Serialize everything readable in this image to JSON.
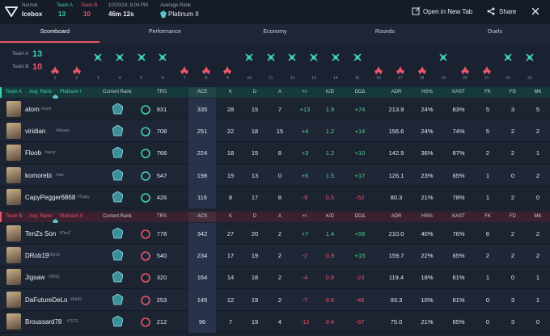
{
  "header": {
    "mode": "Normal",
    "map": "Icebox",
    "team_a_label": "Team A",
    "team_a_score": "13",
    "team_b_label": "Team B",
    "team_b_score": "10",
    "date": "10/20/24, 8:04 PM",
    "duration": "46m 12s",
    "avg_rank_label": "Average Rank",
    "avg_rank": "Platinum II",
    "open_new_tab": "Open in New Tab",
    "share": "Share"
  },
  "tabs": [
    "Scoreboard",
    "Performance",
    "Economy",
    "Rounds",
    "Duels"
  ],
  "active_tab": 0,
  "timeline": {
    "team_a_label": "Team A",
    "team_a_score": "13",
    "team_b_label": "Team B",
    "team_b_score": "10",
    "rounds": [
      {
        "label": "1",
        "winner": "team_b"
      },
      {
        "label": "2",
        "winner": "team_b"
      },
      {
        "label": "3",
        "winner": "team_a"
      },
      {
        "label": "4",
        "winner": "team_a"
      },
      {
        "label": "5",
        "winner": "team_a"
      },
      {
        "label": "6",
        "winner": "team_a"
      },
      {
        "label": "7",
        "winner": "team_b"
      },
      {
        "label": "8",
        "winner": "team_b"
      },
      {
        "label": "9",
        "winner": "team_b"
      },
      {
        "label": "10",
        "winner": "team_a"
      },
      {
        "label": "11",
        "winner": "team_a"
      },
      {
        "label": "12",
        "winner": "team_a"
      },
      {
        "label": "13",
        "winner": "team_a"
      },
      {
        "label": "14",
        "winner": "team_a"
      },
      {
        "label": "15",
        "winner": "team_a"
      },
      {
        "label": "16",
        "winner": "team_b"
      },
      {
        "label": "17",
        "winner": "team_b"
      },
      {
        "label": "18",
        "winner": "team_b"
      },
      {
        "label": "19",
        "winner": "team_a"
      },
      {
        "label": "20",
        "winner": "team_b"
      },
      {
        "label": "21",
        "winner": "team_b"
      },
      {
        "label": "22",
        "winner": "team_a"
      },
      {
        "label": "23",
        "winner": "team_a"
      }
    ]
  },
  "columns": [
    "Current Rank",
    "TRS",
    "ACS",
    "K",
    "D",
    "A",
    "+/-",
    "K/D",
    "DDΔ",
    "ADR",
    "HS%",
    "KAST",
    "FK",
    "FD",
    "MK"
  ],
  "teams": [
    {
      "label": "Team A",
      "avg_rank_label": "Avg. Rank:",
      "avg_rank": "Platinum I",
      "color": "#3fd0b4",
      "band": "#163a3a",
      "players": [
        {
          "name": "atom",
          "tag": "#care",
          "stats": [
            "931",
            "335",
            "28",
            "15",
            "7",
            "+13",
            "1.9",
            "+74",
            "213.9",
            "24%",
            "83%",
            "5",
            "3",
            "5"
          ]
        },
        {
          "name": "viridian",
          "tag": "#dream",
          "stats": [
            "708",
            "251",
            "22",
            "18",
            "15",
            "+4",
            "1.2",
            "+14",
            "156.6",
            "24%",
            "74%",
            "5",
            "2",
            "2"
          ]
        },
        {
          "name": "Floob",
          "tag": "#sexy",
          "stats": [
            "766",
            "224",
            "18",
            "15",
            "8",
            "+3",
            "1.2",
            "+10",
            "142.9",
            "36%",
            "87%",
            "2",
            "2",
            "1"
          ]
        },
        {
          "name": "komorebi",
          "tag": "#npr",
          "stats": [
            "547",
            "198",
            "19",
            "13",
            "0",
            "+6",
            "1.5",
            "+17",
            "126.1",
            "23%",
            "65%",
            "1",
            "0",
            "2"
          ]
        },
        {
          "name": "CapyPegger6868",
          "tag": "#Capy",
          "stats": [
            "426",
            "116",
            "8",
            "17",
            "8",
            "-9",
            "0.5",
            "-52",
            "80.3",
            "21%",
            "78%",
            "1",
            "2",
            "0"
          ]
        }
      ]
    },
    {
      "label": "Team B",
      "avg_rank_label": "Avg. Rank:",
      "avg_rank": "Platinum II",
      "color": "#e8566a",
      "band": "#3b2030",
      "players": [
        {
          "name": "TenZs Son",
          "tag": "#TenZ",
          "stats": [
            "778",
            "342",
            "27",
            "20",
            "2",
            "+7",
            "1.4",
            "+58",
            "210.0",
            "40%",
            "76%",
            "6",
            "2",
            "2"
          ]
        },
        {
          "name": "DRob19",
          "tag": "#2019",
          "stats": [
            "540",
            "234",
            "17",
            "19",
            "2",
            "-2",
            "0.9",
            "+15",
            "159.7",
            "22%",
            "65%",
            "2",
            "2",
            "2"
          ]
        },
        {
          "name": "Jigsaw",
          "tag": "#9051",
          "stats": [
            "320",
            "164",
            "14",
            "18",
            "2",
            "-4",
            "0.8",
            "-23",
            "119.4",
            "18%",
            "61%",
            "1",
            "0",
            "1"
          ]
        },
        {
          "name": "DaFutureDeLo",
          "tag": "#6442",
          "stats": [
            "253",
            "145",
            "12",
            "19",
            "2",
            "-7",
            "0.6",
            "-46",
            "93.3",
            "10%",
            "61%",
            "0",
            "3",
            "1"
          ]
        },
        {
          "name": "Broussard78",
          "tag": "#7073",
          "stats": [
            "212",
            "96",
            "7",
            "19",
            "4",
            "-12",
            "0.4",
            "-67",
            "75.0",
            "21%",
            "65%",
            "0",
            "3",
            "0"
          ]
        }
      ]
    }
  ]
}
